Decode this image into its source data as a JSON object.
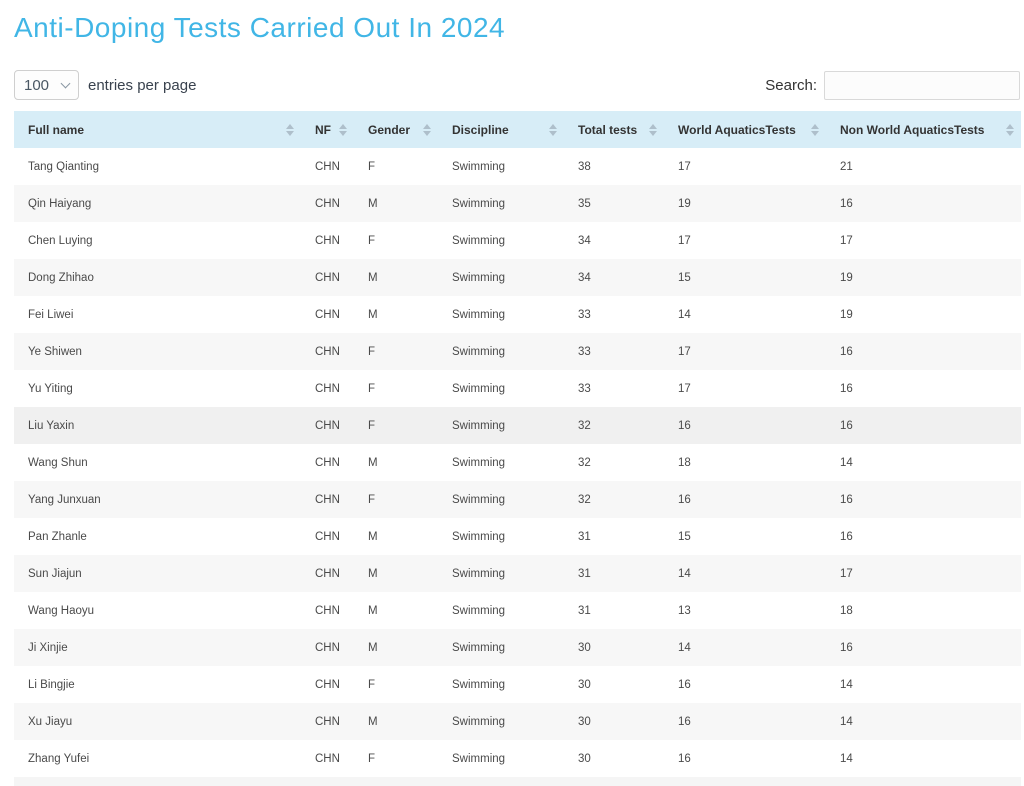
{
  "page": {
    "title": "Anti-Doping Tests Carried Out In 2024"
  },
  "controls": {
    "entries_value": "100",
    "entries_label": "entries per page",
    "search_label": "Search:",
    "search_value": "",
    "search_placeholder": ""
  },
  "table": {
    "columns": [
      "Full name",
      "NF",
      "Gender",
      "Discipline",
      "Total tests",
      "World AquaticsTests",
      "Non World AquaticsTests"
    ],
    "highlighted_row_index": 7,
    "rows": [
      [
        "Tang Qianting",
        "CHN",
        "F",
        "Swimming",
        38,
        17,
        21
      ],
      [
        "Qin Haiyang",
        "CHN",
        "M",
        "Swimming",
        35,
        19,
        16
      ],
      [
        "Chen Luying",
        "CHN",
        "F",
        "Swimming",
        34,
        17,
        17
      ],
      [
        "Dong Zhihao",
        "CHN",
        "M",
        "Swimming",
        34,
        15,
        19
      ],
      [
        "Fei Liwei",
        "CHN",
        "M",
        "Swimming",
        33,
        14,
        19
      ],
      [
        "Ye Shiwen",
        "CHN",
        "F",
        "Swimming",
        33,
        17,
        16
      ],
      [
        "Yu Yiting",
        "CHN",
        "F",
        "Swimming",
        33,
        17,
        16
      ],
      [
        "Liu Yaxin",
        "CHN",
        "F",
        "Swimming",
        32,
        16,
        16
      ],
      [
        "Wang Shun",
        "CHN",
        "M",
        "Swimming",
        32,
        18,
        14
      ],
      [
        "Yang Junxuan",
        "CHN",
        "F",
        "Swimming",
        32,
        16,
        16
      ],
      [
        "Pan Zhanle",
        "CHN",
        "M",
        "Swimming",
        31,
        15,
        16
      ],
      [
        "Sun Jiajun",
        "CHN",
        "M",
        "Swimming",
        31,
        14,
        17
      ],
      [
        "Wang Haoyu",
        "CHN",
        "M",
        "Swimming",
        31,
        13,
        18
      ],
      [
        "Ji Xinjie",
        "CHN",
        "M",
        "Swimming",
        30,
        14,
        16
      ],
      [
        "Li Bingjie",
        "CHN",
        "F",
        "Swimming",
        30,
        16,
        14
      ],
      [
        "Xu Jiayu",
        "CHN",
        "M",
        "Swimming",
        30,
        16,
        14
      ],
      [
        "Zhang Yufei",
        "CHN",
        "F",
        "Swimming",
        30,
        16,
        14
      ]
    ]
  },
  "colors": {
    "title": "#41b6e6",
    "header_bg": "#d7edf7",
    "stripe_bg": "#f7f7f7",
    "sort_arrow": "#aebfcb"
  }
}
